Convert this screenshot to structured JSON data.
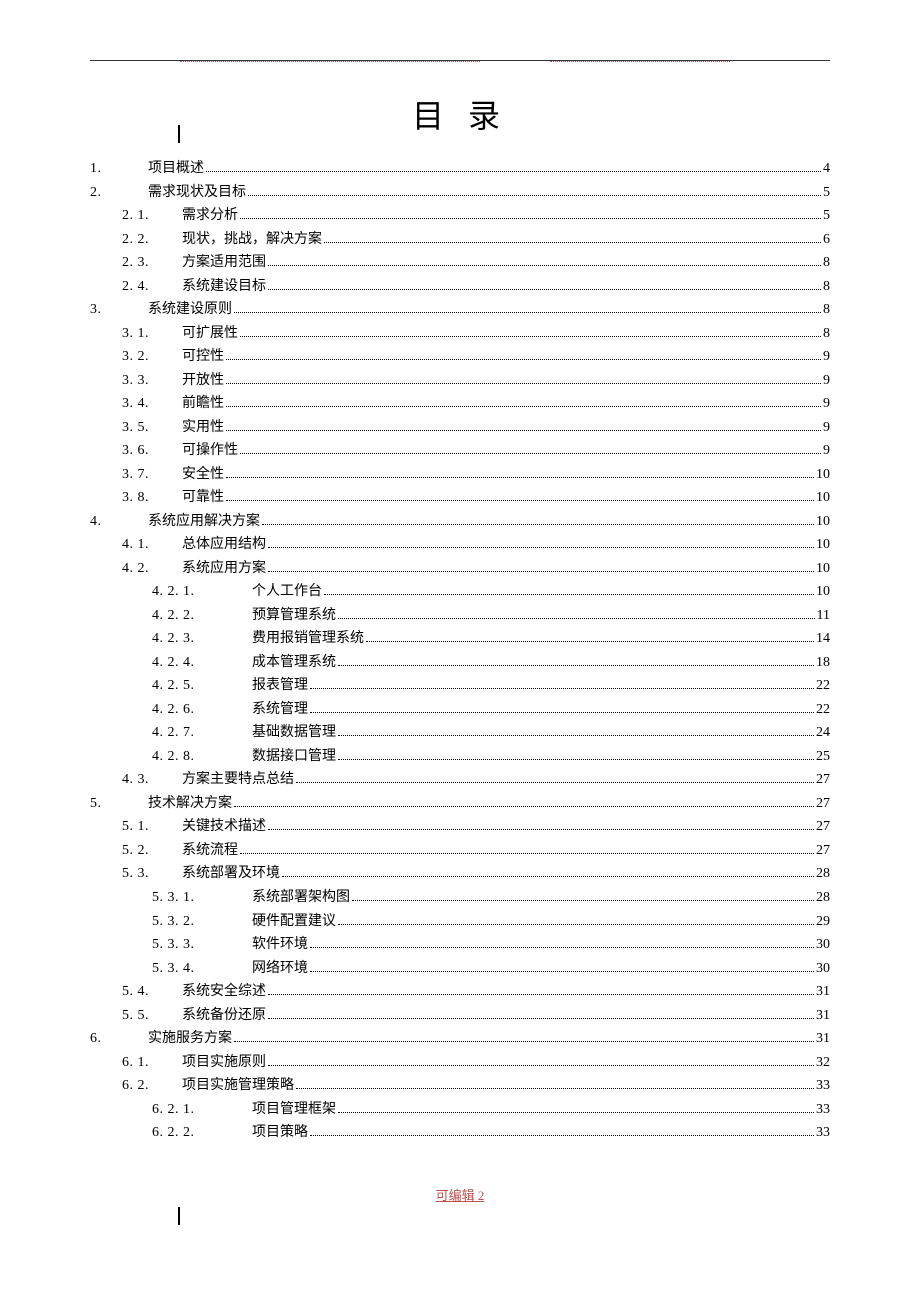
{
  "title": "目 录",
  "footer": "可编辑 2",
  "toc": [
    {
      "level": 1,
      "num": "1.",
      "text": "项目概述",
      "page": "4"
    },
    {
      "level": 1,
      "num": "2.",
      "text": "需求现状及目标",
      "page": "5"
    },
    {
      "level": 2,
      "num": "2. 1.",
      "text": "需求分析",
      "page": "5"
    },
    {
      "level": 2,
      "num": "2. 2.",
      "text": "现状，挑战，解决方案",
      "page": "6"
    },
    {
      "level": 2,
      "num": "2. 3.",
      "text": "方案适用范围",
      "page": "8"
    },
    {
      "level": 2,
      "num": "2. 4.",
      "text": "系统建设目标",
      "page": "8"
    },
    {
      "level": 1,
      "num": "3.",
      "text": "系统建设原则",
      "page": "8"
    },
    {
      "level": 2,
      "num": "3. 1.",
      "text": "可扩展性",
      "page": "8"
    },
    {
      "level": 2,
      "num": "3. 2.",
      "text": "可控性",
      "page": "9"
    },
    {
      "level": 2,
      "num": "3. 3.",
      "text": "开放性",
      "page": "9"
    },
    {
      "level": 2,
      "num": "3. 4.",
      "text": "前瞻性",
      "page": "9"
    },
    {
      "level": 2,
      "num": "3. 5.",
      "text": "实用性",
      "page": "9"
    },
    {
      "level": 2,
      "num": "3. 6.",
      "text": "可操作性",
      "page": "9"
    },
    {
      "level": 2,
      "num": "3. 7.",
      "text": "安全性",
      "page": "10"
    },
    {
      "level": 2,
      "num": "3. 8.",
      "text": "可靠性",
      "page": "10"
    },
    {
      "level": 1,
      "num": "4.",
      "text": "系统应用解决方案",
      "page": "10"
    },
    {
      "level": 2,
      "num": "4. 1.",
      "text": "总体应用结构",
      "page": "10"
    },
    {
      "level": 2,
      "num": "4. 2.",
      "text": "系统应用方案",
      "page": "10"
    },
    {
      "level": 3,
      "num": "4. 2. 1.",
      "text": "个人工作台",
      "page": "10"
    },
    {
      "level": 3,
      "num": "4. 2. 2.",
      "text": "预算管理系统",
      "page": "11"
    },
    {
      "level": 3,
      "num": "4. 2. 3.",
      "text": "费用报销管理系统",
      "page": "14"
    },
    {
      "level": 3,
      "num": "4. 2. 4.",
      "text": "成本管理系统",
      "page": "18"
    },
    {
      "level": 3,
      "num": "4. 2. 5.",
      "text": "报表管理",
      "page": "22"
    },
    {
      "level": 3,
      "num": "4. 2. 6.",
      "text": "系统管理",
      "page": "22"
    },
    {
      "level": 3,
      "num": "4. 2. 7.",
      "text": "基础数据管理",
      "page": "24"
    },
    {
      "level": 3,
      "num": "4. 2. 8.",
      "text": "数据接口管理",
      "page": "25"
    },
    {
      "level": 2,
      "num": "4. 3.",
      "text": "方案主要特点总结",
      "page": "27"
    },
    {
      "level": 1,
      "num": "5.",
      "text": "技术解决方案",
      "page": "27"
    },
    {
      "level": 2,
      "num": "5. 1.",
      "text": "关键技术描述",
      "page": "27"
    },
    {
      "level": 2,
      "num": "5. 2.",
      "text": "系统流程",
      "page": "27"
    },
    {
      "level": 2,
      "num": "5. 3.",
      "text": "系统部署及环境",
      "page": "28"
    },
    {
      "level": 3,
      "num": "5. 3. 1.",
      "text": "系统部署架构图",
      "page": "28"
    },
    {
      "level": 3,
      "num": "5. 3. 2.",
      "text": "硬件配置建议",
      "page": "29"
    },
    {
      "level": 3,
      "num": "5. 3. 3.",
      "text": "软件环境",
      "page": "30"
    },
    {
      "level": 3,
      "num": "5. 3. 4.",
      "text": "网络环境",
      "page": "30"
    },
    {
      "level": 2,
      "num": "5. 4.",
      "text": "系统安全综述",
      "page": "31"
    },
    {
      "level": 2,
      "num": "5. 5.",
      "text": "系统备份还原",
      "page": "31"
    },
    {
      "level": 1,
      "num": "6.",
      "text": "实施服务方案",
      "page": "31"
    },
    {
      "level": 2,
      "num": "6. 1.",
      "text": "项目实施原则",
      "page": "32"
    },
    {
      "level": 2,
      "num": "6. 2.",
      "text": "项目实施管理策略",
      "page": "33"
    },
    {
      "level": 3,
      "num": "6. 2. 1.",
      "text": "项目管理框架",
      "page": "33"
    },
    {
      "level": 3,
      "num": "6. 2. 2.",
      "text": "项目策略",
      "page": "33"
    }
  ]
}
